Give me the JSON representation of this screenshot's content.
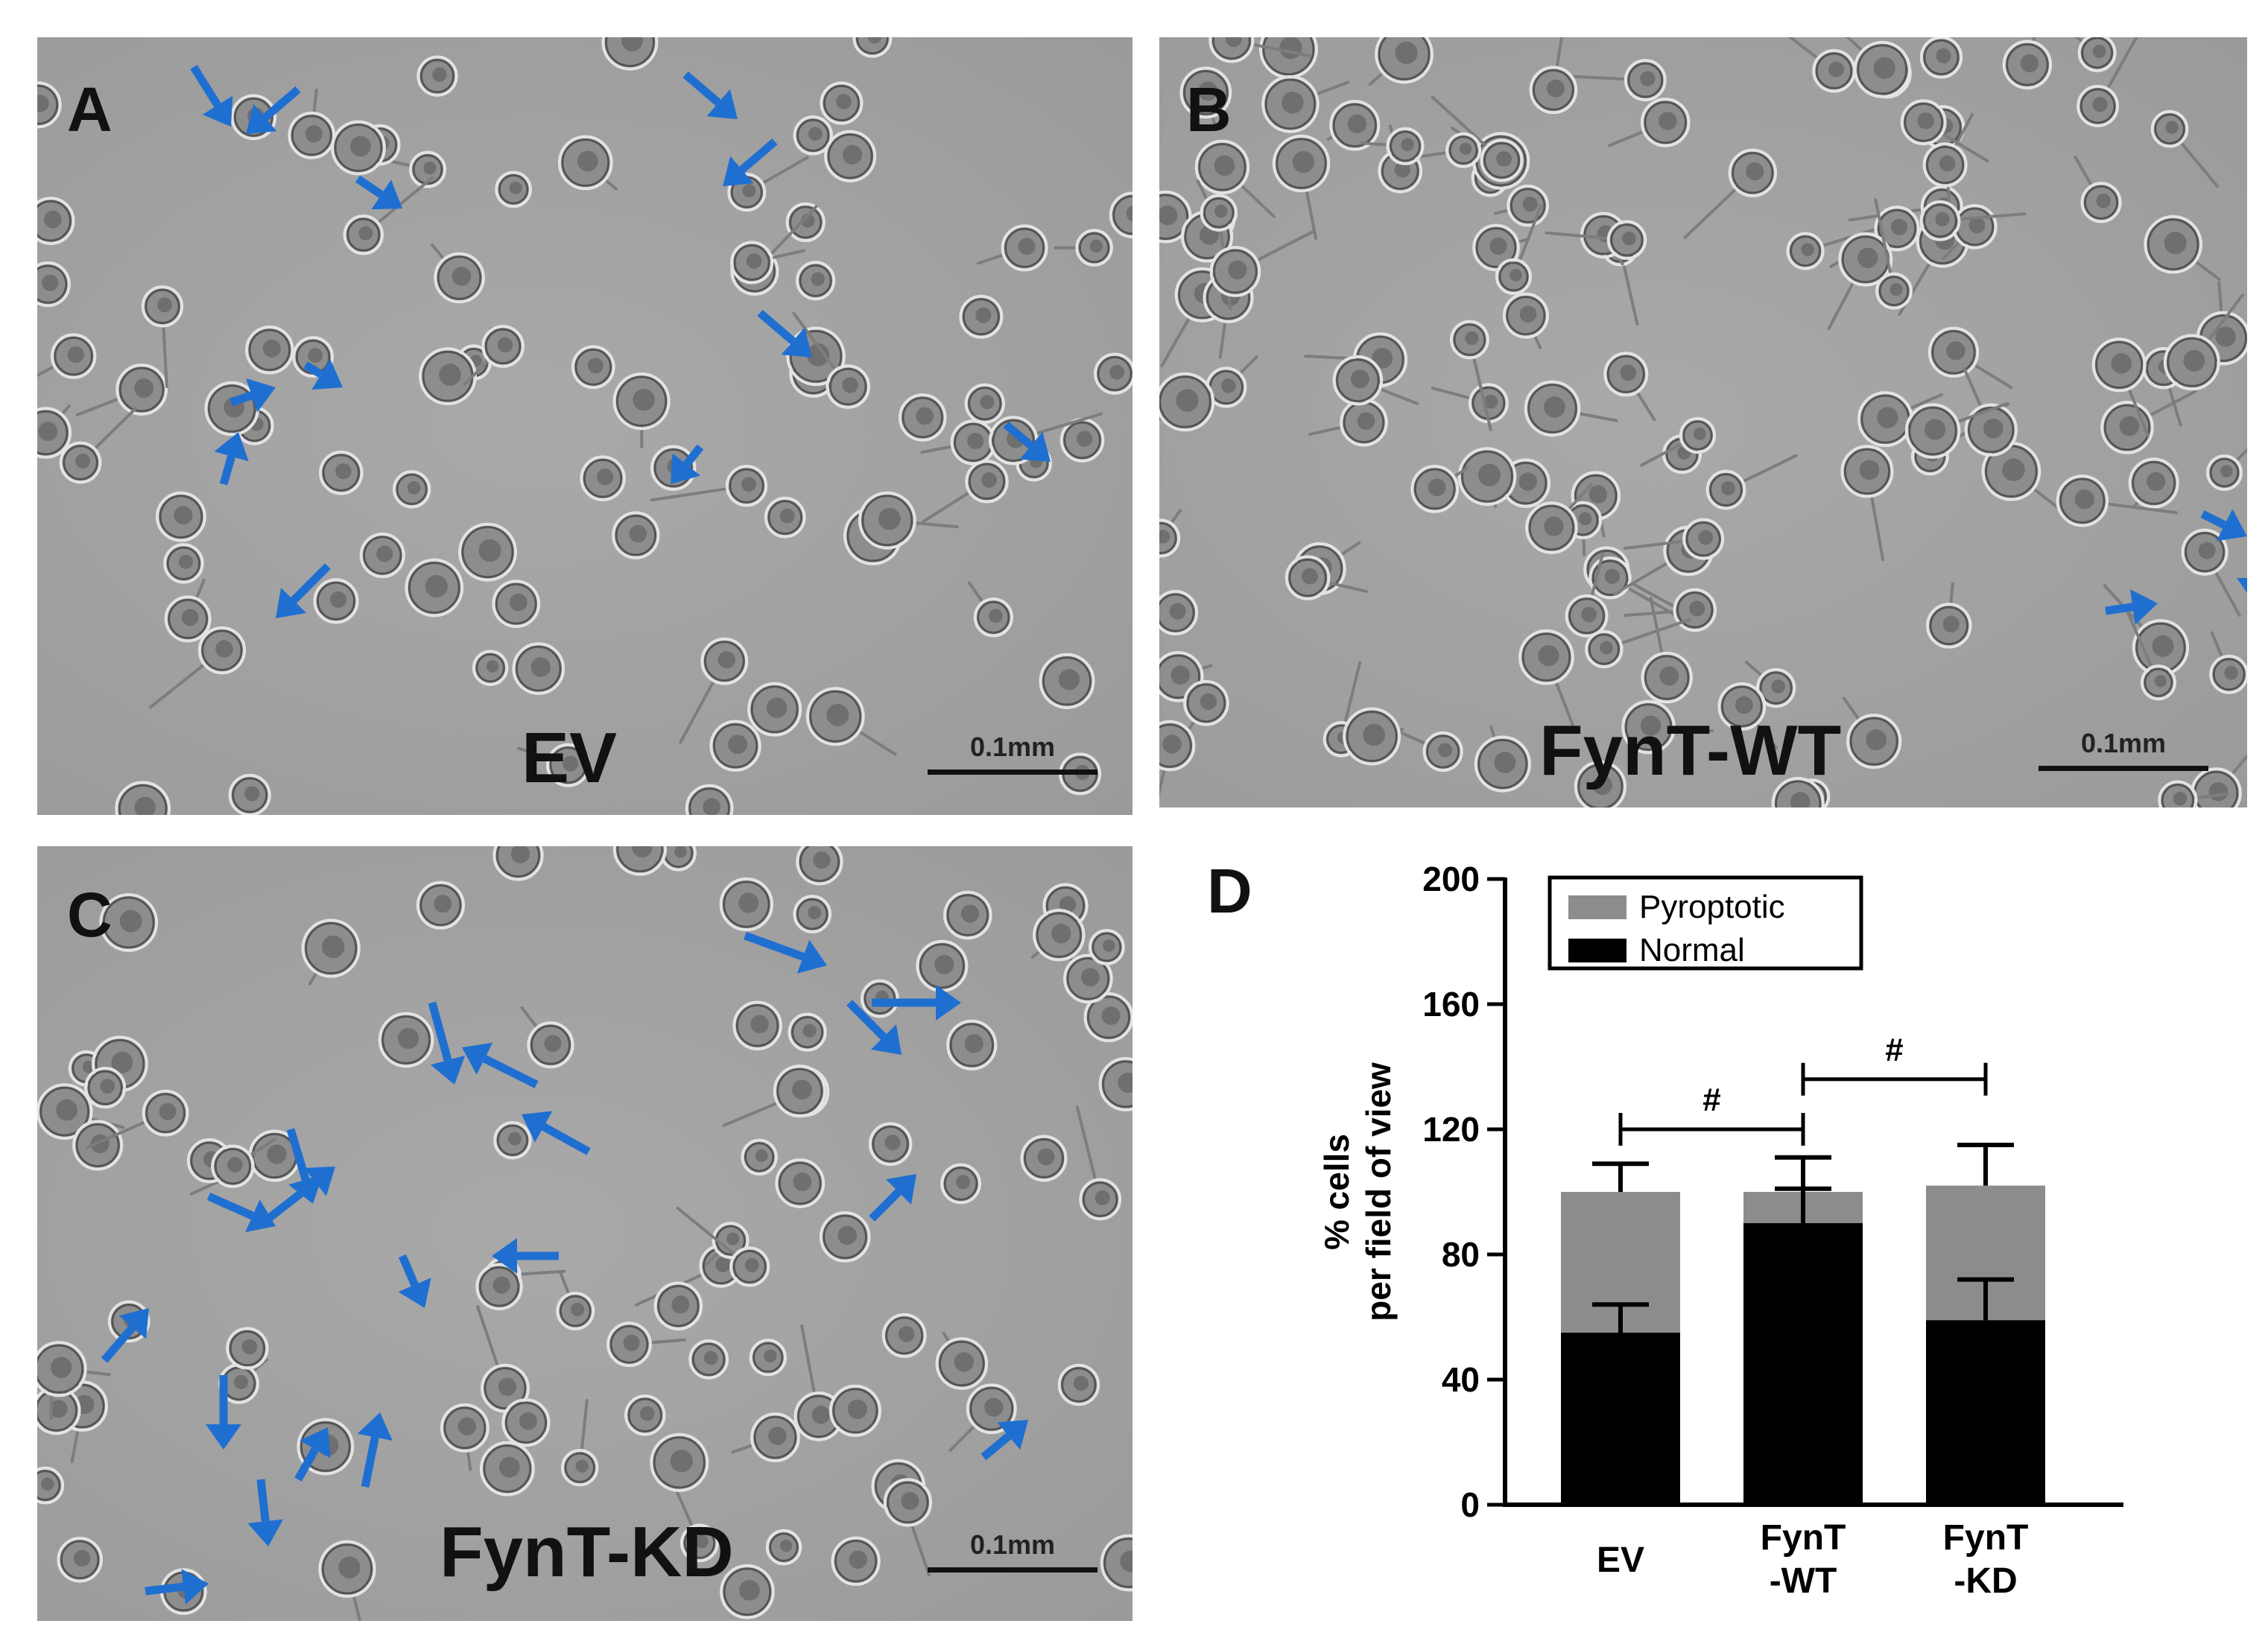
{
  "figure": {
    "panels": [
      {
        "letter": "A",
        "condition": "EV",
        "scale_bar": "0.1mm"
      },
      {
        "letter": "B",
        "condition": "FynT-WT",
        "scale_bar": "0.1mm"
      },
      {
        "letter": "C",
        "condition": "FynT-KD",
        "scale_bar": "0.1mm"
      }
    ],
    "arrow_color": "#1f6fd1",
    "image_background": "#a3a3a3"
  },
  "chart_letter": "D",
  "chart_data": {
    "type": "bar",
    "stacked": true,
    "categories": [
      [
        "EV"
      ],
      [
        "FynT",
        "-WT"
      ],
      [
        "FynT",
        "-KD"
      ]
    ],
    "series": [
      {
        "name": "Normal",
        "values": [
          55,
          90,
          59
        ],
        "errors": [
          9,
          11,
          13
        ],
        "color": "#000000"
      },
      {
        "name": "Pyroptotic",
        "values": [
          45,
          10,
          43
        ],
        "errors": [
          9,
          11,
          13
        ],
        "color": "#8c8c8c"
      }
    ],
    "ylabel": [
      "% cells",
      "per field of view"
    ],
    "ylim": [
      0,
      200
    ],
    "yticks": [
      0,
      40,
      80,
      120,
      160,
      200
    ],
    "legend": {
      "position": "top-center",
      "entries": [
        "Pyroptotic",
        "Normal"
      ]
    },
    "significance": [
      {
        "from": 0,
        "to": 1,
        "label": "#",
        "y": 120
      },
      {
        "from": 1,
        "to": 2,
        "label": "#",
        "y": 136
      }
    ],
    "grid": false
  }
}
